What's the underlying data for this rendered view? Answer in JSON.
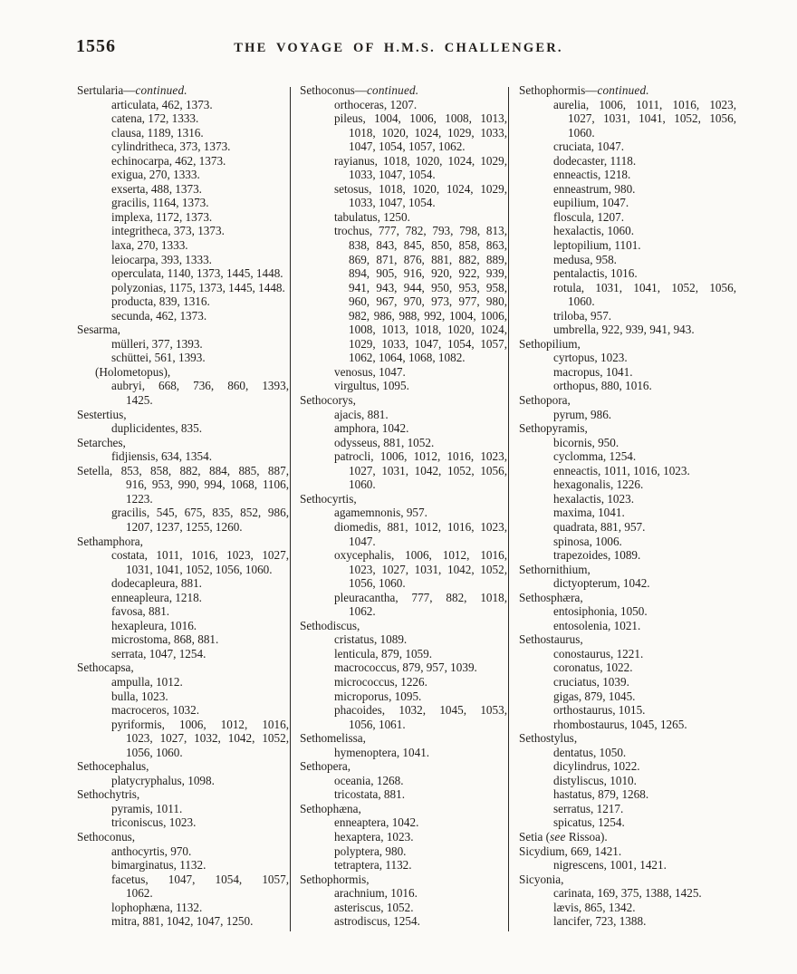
{
  "page": {
    "number": "1556",
    "header": "THE VOYAGE OF H.M.S. CHALLENGER."
  },
  "columns": [
    {
      "lines": [
        {
          "t": "Sertularia—continued.",
          "k": "g",
          "i": "continued."
        },
        {
          "t": "articulata, 462, 1373.",
          "k": "s"
        },
        {
          "t": "catena, 172, 1333.",
          "k": "s"
        },
        {
          "t": "clausa, 1189, 1316.",
          "k": "s"
        },
        {
          "t": "cylindritheca, 373, 1373.",
          "k": "s"
        },
        {
          "t": "echinocarpa, 462, 1373.",
          "k": "s"
        },
        {
          "t": "exigua, 270, 1333.",
          "k": "s"
        },
        {
          "t": "exserta, 488, 1373.",
          "k": "s"
        },
        {
          "t": "gracilis, 1164, 1373.",
          "k": "s"
        },
        {
          "t": "implexa, 1172, 1373.",
          "k": "s"
        },
        {
          "t": "integritheca, 373, 1373.",
          "k": "s"
        },
        {
          "t": "laxa, 270, 1333.",
          "k": "s"
        },
        {
          "t": "leiocarpa, 393, 1333.",
          "k": "s"
        },
        {
          "t": "operculata, 1140, 1373, 1445, 1448.",
          "k": "s"
        },
        {
          "t": "polyzonias, 1175, 1373, 1445, 1448.",
          "k": "s"
        },
        {
          "t": "producta, 839, 1316.",
          "k": "s"
        },
        {
          "t": "secunda, 462, 1373.",
          "k": "s"
        },
        {
          "t": "Sesarma,",
          "k": "g"
        },
        {
          "t": "mülleri, 377, 1393.",
          "k": "s"
        },
        {
          "t": "schüttei, 561, 1393.",
          "k": "s"
        },
        {
          "t": "(Holometopus),",
          "k": "p"
        },
        {
          "t": "aubryi, 668, 736, 860, 1393,",
          "k": "s",
          "j": true
        },
        {
          "t": "1425.",
          "k": "c"
        },
        {
          "t": "Sestertius,",
          "k": "g"
        },
        {
          "t": "duplicidentes, 835.",
          "k": "s"
        },
        {
          "t": "Setarches,",
          "k": "g"
        },
        {
          "t": "fidjiensis, 634, 1354.",
          "k": "s"
        },
        {
          "t": "Setella, 853, 858, 882, 884, 885, 887,",
          "k": "g",
          "j": true
        },
        {
          "t": "916, 953, 990, 994, 1068, 1106,",
          "k": "c",
          "j": true
        },
        {
          "t": "1223.",
          "k": "c"
        },
        {
          "t": "gracilis, 545, 675, 835, 852, 986,",
          "k": "s",
          "j": true
        },
        {
          "t": "1207, 1237, 1255, 1260.",
          "k": "c"
        },
        {
          "t": "Sethamphora,",
          "k": "g"
        },
        {
          "t": "costata, 1011, 1016, 1023, 1027,",
          "k": "s",
          "j": true
        },
        {
          "t": "1031, 1041, 1052, 1056, 1060.",
          "k": "c"
        },
        {
          "t": "dodecapleura, 881.",
          "k": "s"
        },
        {
          "t": "enneapleura, 1218.",
          "k": "s"
        },
        {
          "t": "favosa, 881.",
          "k": "s"
        },
        {
          "t": "hexapleura, 1016.",
          "k": "s"
        },
        {
          "t": "microstoma, 868, 881.",
          "k": "s"
        },
        {
          "t": "serrata, 1047, 1254.",
          "k": "s"
        },
        {
          "t": "Sethocapsa,",
          "k": "g"
        },
        {
          "t": "ampulla, 1012.",
          "k": "s"
        },
        {
          "t": "bulla, 1023.",
          "k": "s"
        },
        {
          "t": "macroceros, 1032.",
          "k": "s"
        },
        {
          "t": "pyriformis, 1006, 1012, 1016,",
          "k": "s",
          "j": true
        },
        {
          "t": "1023, 1027, 1032, 1042, 1052,",
          "k": "c",
          "j": true
        },
        {
          "t": "1056, 1060.",
          "k": "c"
        },
        {
          "t": "Sethocephalus,",
          "k": "g"
        },
        {
          "t": "platycryphalus, 1098.",
          "k": "s"
        },
        {
          "t": "Sethochytris,",
          "k": "g"
        },
        {
          "t": "pyramis, 1011.",
          "k": "s"
        },
        {
          "t": "triconiscus, 1023.",
          "k": "s"
        },
        {
          "t": "Sethoconus,",
          "k": "g"
        },
        {
          "t": "anthocyrtis, 970.",
          "k": "s"
        },
        {
          "t": "bimarginatus, 1132.",
          "k": "s"
        },
        {
          "t": "facetus, 1047, 1054, 1057,",
          "k": "s",
          "j": true
        },
        {
          "t": "1062.",
          "k": "c"
        },
        {
          "t": "lophophæna, 1132.",
          "k": "s"
        },
        {
          "t": "mitra, 881, 1042, 1047, 1250.",
          "k": "s"
        }
      ]
    },
    {
      "lines": [
        {
          "t": "Sethoconus—continued.",
          "k": "g",
          "i": "continued."
        },
        {
          "t": "orthoceras, 1207.",
          "k": "s"
        },
        {
          "t": "pileus, 1004, 1006, 1008, 1013,",
          "k": "s",
          "j": true
        },
        {
          "t": "1018, 1020, 1024, 1029, 1033,",
          "k": "c",
          "j": true
        },
        {
          "t": "1047, 1054, 1057, 1062.",
          "k": "c"
        },
        {
          "t": "rayianus, 1018, 1020, 1024, 1029,",
          "k": "s",
          "j": true
        },
        {
          "t": "1033, 1047, 1054.",
          "k": "c"
        },
        {
          "t": "setosus, 1018, 1020, 1024, 1029,",
          "k": "s",
          "j": true
        },
        {
          "t": "1033, 1047, 1054.",
          "k": "c"
        },
        {
          "t": "tabulatus, 1250.",
          "k": "s"
        },
        {
          "t": "trochus, 777, 782, 793, 798, 813,",
          "k": "s",
          "j": true
        },
        {
          "t": "838, 843, 845, 850, 858, 863,",
          "k": "c",
          "j": true
        },
        {
          "t": "869, 871, 876, 881, 882, 889,",
          "k": "c",
          "j": true
        },
        {
          "t": "894, 905, 916, 920, 922, 939,",
          "k": "c",
          "j": true
        },
        {
          "t": "941, 943, 944, 950, 953, 958,",
          "k": "c",
          "j": true
        },
        {
          "t": "960, 967, 970, 973, 977, 980,",
          "k": "c",
          "j": true
        },
        {
          "t": "982, 986, 988, 992, 1004, 1006,",
          "k": "c",
          "j": true
        },
        {
          "t": "1008, 1013, 1018, 1020, 1024,",
          "k": "c",
          "j": true
        },
        {
          "t": "1029, 1033, 1047, 1054, 1057,",
          "k": "c",
          "j": true
        },
        {
          "t": "1062, 1064, 1068, 1082.",
          "k": "c"
        },
        {
          "t": "venosus, 1047.",
          "k": "s"
        },
        {
          "t": "virgultus, 1095.",
          "k": "s"
        },
        {
          "t": "Sethocorys,",
          "k": "g"
        },
        {
          "t": "ajacis, 881.",
          "k": "s"
        },
        {
          "t": "amphora, 1042.",
          "k": "s"
        },
        {
          "t": "odysseus, 881, 1052.",
          "k": "s"
        },
        {
          "t": "patrocli, 1006, 1012, 1016, 1023,",
          "k": "s",
          "j": true
        },
        {
          "t": "1027, 1031, 1042, 1052, 1056,",
          "k": "c",
          "j": true
        },
        {
          "t": "1060.",
          "k": "c"
        },
        {
          "t": "Sethocyrtis,",
          "k": "g"
        },
        {
          "t": "agamemnonis, 957.",
          "k": "s"
        },
        {
          "t": "diomedis, 881, 1012, 1016, 1023,",
          "k": "s",
          "j": true
        },
        {
          "t": "1047.",
          "k": "c"
        },
        {
          "t": "oxycephalis, 1006, 1012, 1016,",
          "k": "s",
          "j": true
        },
        {
          "t": "1023, 1027, 1031, 1042, 1052,",
          "k": "c",
          "j": true
        },
        {
          "t": "1056, 1060.",
          "k": "c"
        },
        {
          "t": "pleuracantha, 777, 882, 1018,",
          "k": "s",
          "j": true
        },
        {
          "t": "1062.",
          "k": "c"
        },
        {
          "t": "Sethodiscus,",
          "k": "g"
        },
        {
          "t": "cristatus, 1089.",
          "k": "s"
        },
        {
          "t": "lenticula, 879, 1059.",
          "k": "s"
        },
        {
          "t": "macrococcus, 879, 957, 1039.",
          "k": "s"
        },
        {
          "t": "micrococcus, 1226.",
          "k": "s"
        },
        {
          "t": "microporus, 1095.",
          "k": "s"
        },
        {
          "t": "phacoides, 1032, 1045, 1053,",
          "k": "s",
          "j": true
        },
        {
          "t": "1056, 1061.",
          "k": "c"
        },
        {
          "t": "Sethomelissa,",
          "k": "g"
        },
        {
          "t": "hymenoptera, 1041.",
          "k": "s"
        },
        {
          "t": "Sethopera,",
          "k": "g"
        },
        {
          "t": "oceania, 1268.",
          "k": "s"
        },
        {
          "t": "tricostata, 881.",
          "k": "s"
        },
        {
          "t": "Sethophæna,",
          "k": "g"
        },
        {
          "t": "enneaptera, 1042.",
          "k": "s"
        },
        {
          "t": "hexaptera, 1023.",
          "k": "s"
        },
        {
          "t": "polyptera, 980.",
          "k": "s"
        },
        {
          "t": "tetraptera, 1132.",
          "k": "s"
        },
        {
          "t": "Sethophormis,",
          "k": "g"
        },
        {
          "t": "arachnium, 1016.",
          "k": "s"
        },
        {
          "t": "asteriscus, 1052.",
          "k": "s"
        },
        {
          "t": "astrodiscus, 1254.",
          "k": "s"
        }
      ]
    },
    {
      "lines": [
        {
          "t": "Sethophormis—continued.",
          "k": "g",
          "i": "continued."
        },
        {
          "t": "aurelia, 1006, 1011, 1016, 1023,",
          "k": "s",
          "j": true
        },
        {
          "t": "1027, 1031, 1041, 1052, 1056,",
          "k": "c",
          "j": true
        },
        {
          "t": "1060.",
          "k": "c"
        },
        {
          "t": "cruciata, 1047.",
          "k": "s"
        },
        {
          "t": "dodecaster, 1118.",
          "k": "s"
        },
        {
          "t": "enneactis, 1218.",
          "k": "s"
        },
        {
          "t": "enneastrum, 980.",
          "k": "s"
        },
        {
          "t": "eupilium, 1047.",
          "k": "s"
        },
        {
          "t": "floscula, 1207.",
          "k": "s"
        },
        {
          "t": "hexalactis, 1060.",
          "k": "s"
        },
        {
          "t": "leptopilium, 1101.",
          "k": "s"
        },
        {
          "t": "medusa, 958.",
          "k": "s"
        },
        {
          "t": "pentalactis, 1016.",
          "k": "s"
        },
        {
          "t": "rotula, 1031, 1041, 1052, 1056,",
          "k": "s",
          "j": true
        },
        {
          "t": "1060.",
          "k": "c"
        },
        {
          "t": "triloba, 957.",
          "k": "s"
        },
        {
          "t": "umbrella, 922, 939, 941, 943.",
          "k": "s"
        },
        {
          "t": "Sethopilium,",
          "k": "g"
        },
        {
          "t": "cyrtopus, 1023.",
          "k": "s"
        },
        {
          "t": "macropus, 1041.",
          "k": "s"
        },
        {
          "t": "orthopus, 880, 1016.",
          "k": "s"
        },
        {
          "t": "Sethopora,",
          "k": "g"
        },
        {
          "t": "pyrum, 986.",
          "k": "s"
        },
        {
          "t": "Sethopyramis,",
          "k": "g"
        },
        {
          "t": "bicornis, 950.",
          "k": "s"
        },
        {
          "t": "cyclomma, 1254.",
          "k": "s"
        },
        {
          "t": "enneactis, 1011, 1016, 1023.",
          "k": "s"
        },
        {
          "t": "hexagonalis, 1226.",
          "k": "s"
        },
        {
          "t": "hexalactis, 1023.",
          "k": "s"
        },
        {
          "t": "maxima, 1041.",
          "k": "s"
        },
        {
          "t": "quadrata, 881, 957.",
          "k": "s"
        },
        {
          "t": "spinosa, 1006.",
          "k": "s"
        },
        {
          "t": "trapezoides, 1089.",
          "k": "s"
        },
        {
          "t": "Sethornithium,",
          "k": "g"
        },
        {
          "t": "dictyopterum, 1042.",
          "k": "s"
        },
        {
          "t": "Sethosphæra,",
          "k": "g"
        },
        {
          "t": "entosiphonia, 1050.",
          "k": "s"
        },
        {
          "t": "entosolenia, 1021.",
          "k": "s"
        },
        {
          "t": "Sethostaurus,",
          "k": "g"
        },
        {
          "t": "conostaurus, 1221.",
          "k": "s"
        },
        {
          "t": "coronatus, 1022.",
          "k": "s"
        },
        {
          "t": "cruciatus, 1039.",
          "k": "s"
        },
        {
          "t": "gigas, 879, 1045.",
          "k": "s"
        },
        {
          "t": "orthostaurus, 1015.",
          "k": "s"
        },
        {
          "t": "rhombostaurus, 1045, 1265.",
          "k": "s"
        },
        {
          "t": "Sethostylus,",
          "k": "g"
        },
        {
          "t": "dentatus, 1050.",
          "k": "s"
        },
        {
          "t": "dicylindrus, 1022.",
          "k": "s"
        },
        {
          "t": "distyliscus, 1010.",
          "k": "s"
        },
        {
          "t": "hastatus, 879, 1268.",
          "k": "s"
        },
        {
          "t": "serratus, 1217.",
          "k": "s"
        },
        {
          "t": "spicatus, 1254.",
          "k": "s"
        },
        {
          "t": "Setia (see Rissoa).",
          "k": "g",
          "i": "see"
        },
        {
          "t": "Sicydium, 669, 1421.",
          "k": "g"
        },
        {
          "t": "nigrescens, 1001, 1421.",
          "k": "s"
        },
        {
          "t": "Sicyonia,",
          "k": "g"
        },
        {
          "t": "carinata, 169, 375, 1388, 1425.",
          "k": "s"
        },
        {
          "t": "lævis, 865, 1342.",
          "k": "s"
        },
        {
          "t": "lancifer, 723, 1388.",
          "k": "s"
        }
      ]
    }
  ]
}
